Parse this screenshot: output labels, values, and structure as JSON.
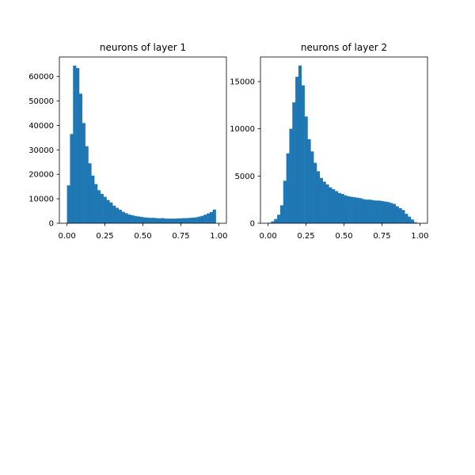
{
  "chart_data": [
    {
      "type": "bar",
      "title": "neurons of layer 1",
      "xlabel": "",
      "ylabel": "",
      "xlim": [
        -0.05,
        1.05
      ],
      "ylim": [
        0,
        68000
      ],
      "bin_width": 0.02,
      "bin_start": 0.0,
      "x_ticks": [
        0.0,
        0.25,
        0.5,
        0.75,
        1.0
      ],
      "x_tick_labels": [
        "0.00",
        "0.25",
        "0.50",
        "0.75",
        "1.00"
      ],
      "y_ticks": [
        0,
        10000,
        20000,
        30000,
        40000,
        50000,
        60000
      ],
      "y_tick_labels": [
        "0",
        "10000",
        "20000",
        "30000",
        "40000",
        "50000",
        "60000"
      ],
      "color": "#1f77b4",
      "grid": false,
      "values": [
        15500,
        36500,
        64500,
        63500,
        53000,
        41000,
        31500,
        24500,
        19500,
        16000,
        13500,
        12000,
        10800,
        9500,
        8500,
        7200,
        6300,
        5500,
        4700,
        4100,
        3600,
        3300,
        3000,
        2800,
        2600,
        2400,
        2300,
        2200,
        2200,
        2100,
        2000,
        2100,
        1900,
        1900,
        1900,
        1900,
        2000,
        2000,
        2100,
        2100,
        2200,
        2300,
        2400,
        2700,
        3000,
        3500,
        4000,
        4600,
        5600
      ]
    },
    {
      "type": "bar",
      "title": "neurons of layer 2",
      "xlabel": "",
      "ylabel": "",
      "xlim": [
        -0.05,
        1.05
      ],
      "ylim": [
        0,
        17600
      ],
      "bin_width": 0.02,
      "bin_start": 0.0,
      "x_ticks": [
        0.0,
        0.25,
        0.5,
        0.75,
        1.0
      ],
      "x_tick_labels": [
        "0.00",
        "0.25",
        "0.50",
        "0.75",
        "1.00"
      ],
      "y_ticks": [
        0,
        5000,
        10000,
        15000
      ],
      "y_tick_labels": [
        "0",
        "5000",
        "10000",
        "15000"
      ],
      "color": "#1f77b4",
      "grid": false,
      "values": [
        50,
        200,
        450,
        900,
        1900,
        4500,
        7400,
        10000,
        12800,
        15500,
        16700,
        14600,
        11300,
        8900,
        7600,
        6400,
        5500,
        4800,
        4400,
        4100,
        3800,
        3600,
        3400,
        3200,
        3100,
        2950,
        2850,
        2800,
        2750,
        2700,
        2650,
        2550,
        2500,
        2500,
        2450,
        2400,
        2400,
        2350,
        2300,
        2250,
        2150,
        2050,
        1800,
        1600,
        1400,
        1000,
        700,
        400,
        100
      ]
    }
  ]
}
